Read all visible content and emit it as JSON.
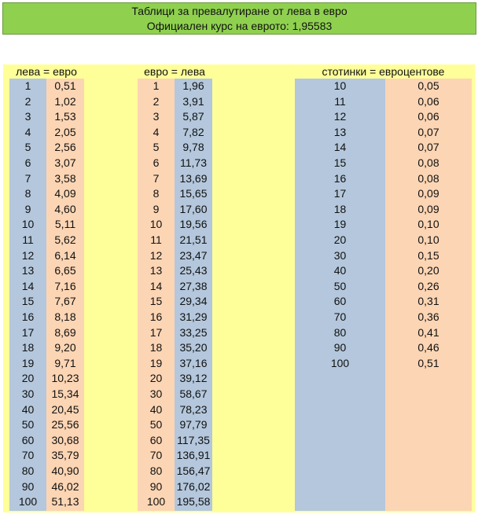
{
  "header": {
    "title": "Таблици за превалутиране от лева в евро",
    "subtitle": "Официален курс на еврото: 1,95583"
  },
  "colors": {
    "header_green": "#8fd14f",
    "sheet_yellow": "#ffff99",
    "blue": "#b4c7dc",
    "orange": "#fcd5b4"
  },
  "tables": [
    {
      "heading": "лева = евро",
      "left": [
        "1",
        "2",
        "3",
        "4",
        "5",
        "6",
        "7",
        "8",
        "9",
        "10",
        "11",
        "12",
        "13",
        "14",
        "15",
        "16",
        "17",
        "18",
        "19",
        "20",
        "30",
        "40",
        "50",
        "60",
        "70",
        "80",
        "90",
        "100"
      ],
      "right": [
        "0,51",
        "1,02",
        "1,53",
        "2,05",
        "2,56",
        "3,07",
        "3,58",
        "4,09",
        "4,60",
        "5,11",
        "5,62",
        "6,14",
        "6,65",
        "7,16",
        "7,67",
        "8,18",
        "8,69",
        "9,20",
        "9,71",
        "10,23",
        "15,34",
        "20,45",
        "25,56",
        "30,68",
        "35,79",
        "40,90",
        "46,02",
        "51,13"
      ]
    },
    {
      "heading": "евро = лева",
      "left": [
        "1",
        "2",
        "3",
        "4",
        "5",
        "6",
        "7",
        "8",
        "9",
        "10",
        "11",
        "12",
        "13",
        "14",
        "15",
        "16",
        "17",
        "18",
        "19",
        "20",
        "30",
        "40",
        "50",
        "60",
        "70",
        "80",
        "90",
        "100"
      ],
      "right": [
        "1,96",
        "3,91",
        "5,87",
        "7,82",
        "9,78",
        "11,73",
        "13,69",
        "15,65",
        "17,60",
        "19,56",
        "21,51",
        "23,47",
        "25,43",
        "27,38",
        "29,34",
        "31,29",
        "33,25",
        "35,20",
        "37,16",
        "39,12",
        "58,67",
        "78,23",
        "97,79",
        "117,35",
        "136,91",
        "156,47",
        "176,02",
        "195,58"
      ]
    },
    {
      "heading": "стотинки = евроцентове",
      "left": [
        "10",
        "11",
        "12",
        "13",
        "14",
        "15",
        "16",
        "17",
        "18",
        "19",
        "20",
        "30",
        "40",
        "50",
        "60",
        "70",
        "80",
        "90",
        "100"
      ],
      "right": [
        "0,05",
        "0,06",
        "0,06",
        "0,07",
        "0,07",
        "0,08",
        "0,08",
        "0,09",
        "0,09",
        "0,10",
        "0,10",
        "0,15",
        "0,20",
        "0,26",
        "0,31",
        "0,36",
        "0,41",
        "0,46",
        "0,51"
      ]
    }
  ]
}
